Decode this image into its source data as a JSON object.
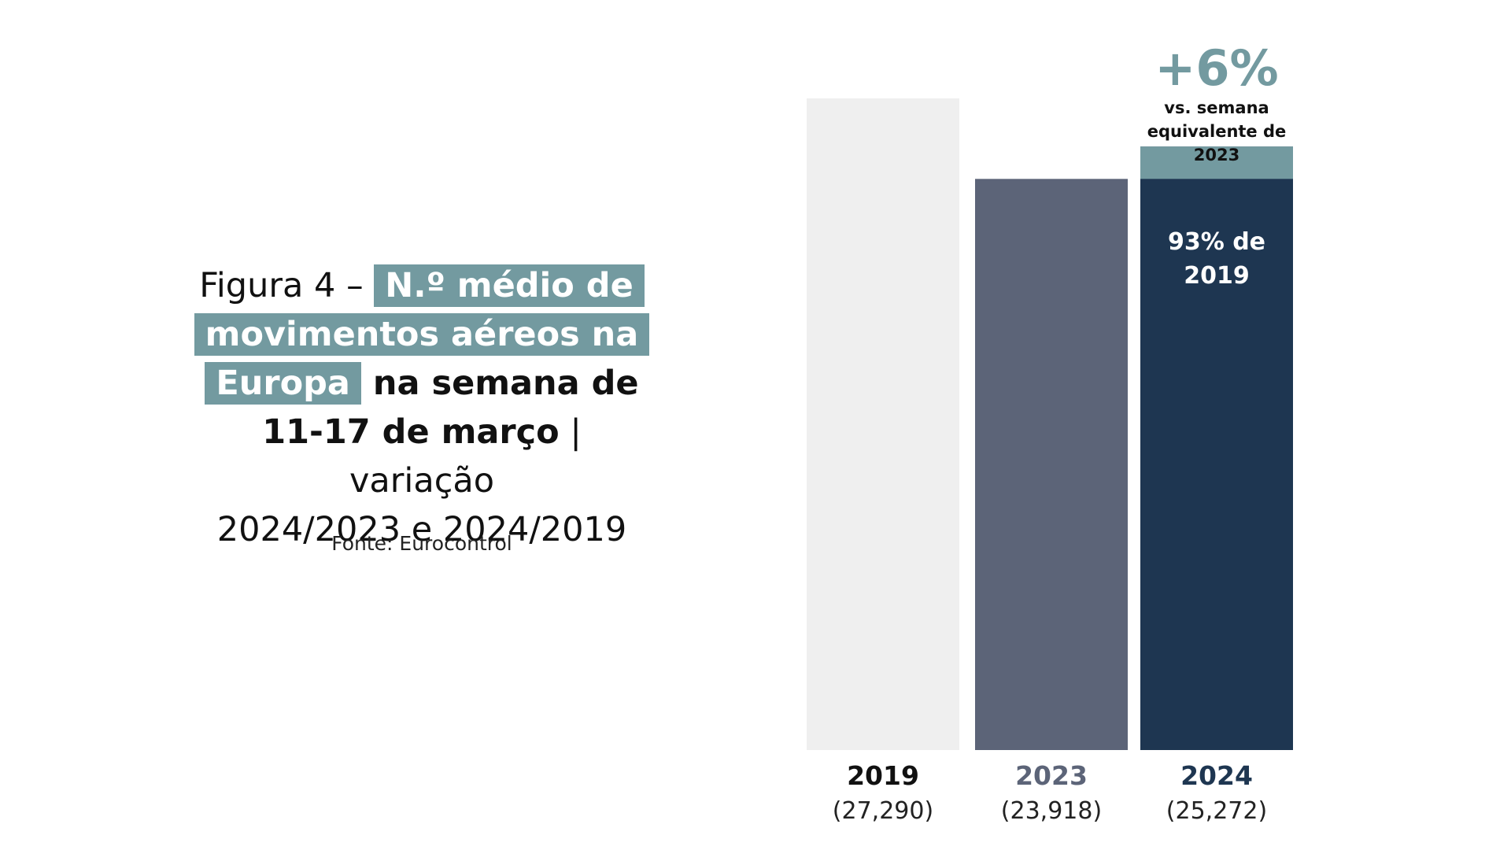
{
  "title": {
    "prefix": "Figura 4 – ",
    "highlight_1": "N.º médio de",
    "highlight_2": "movimentos aéreos na",
    "highlight_3": "Europa",
    "bold_1": " na semana de",
    "bold_2": "11-17 de março",
    "rest_1": " | variação",
    "rest_2": "2024/2023 e  2024/2019"
  },
  "source": "Fonte: Eurocontrol",
  "colors": {
    "accent": "#739aa0",
    "bar_2019": "#efefef",
    "bar_2023": "#5c6478",
    "bar_2024": "#1e3651",
    "label_2019": "#111111",
    "label_2023": "#5c6478",
    "label_2024": "#1e3651"
  },
  "chart_data": {
    "type": "bar",
    "categories": [
      "2019",
      "2023",
      "2024"
    ],
    "values": [
      27290,
      23918,
      25272
    ],
    "value_labels": [
      "(27,290)",
      "(23,918)",
      "(25,272)"
    ],
    "ylim": [
      0,
      27290
    ],
    "grid": false,
    "increase_segment": {
      "category": "2024",
      "from": 23918,
      "to": 25272
    },
    "annotations": {
      "change_vs_2023": "+6%",
      "change_vs_2023_text": [
        "vs. semana",
        "equivalente de",
        "2023"
      ],
      "share_of_2019": [
        "93% de",
        "2019"
      ]
    }
  }
}
